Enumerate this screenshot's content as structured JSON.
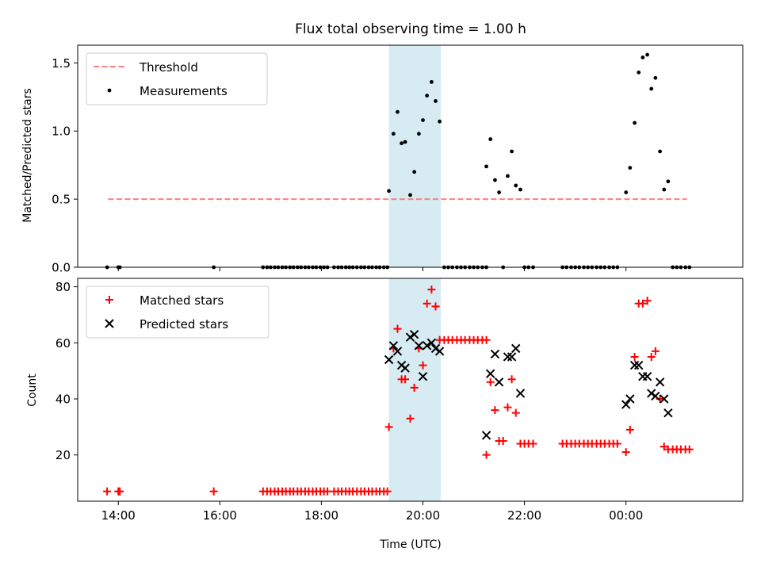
{
  "chart_data": [
    {
      "type": "scatter",
      "title": "Flux total observing time = 1.00 h",
      "xlabel": "",
      "ylabel": "Matched/Predicted stars",
      "xlim": [
        13.2,
        26.3
      ],
      "ylim": [
        0,
        1.63
      ],
      "yticks": [
        0.0,
        0.5,
        1.0,
        1.5
      ],
      "ytick_labels": [
        "0.0",
        "0.5",
        "1.0",
        "1.5"
      ],
      "xticks": [
        14,
        16,
        18,
        20,
        22,
        24
      ],
      "highlight_span": [
        19.33,
        20.35
      ],
      "threshold": {
        "label": "Threshold",
        "value": 0.5,
        "x_range": [
          13.8,
          25.2
        ],
        "color": "#ff7f7f"
      },
      "legend": [
        "Threshold",
        "Measurements"
      ],
      "legend_position": "upper-left",
      "series": [
        {
          "name": "Measurements",
          "color": "#000000",
          "points": [
            [
              13.78,
              0
            ],
            [
              14.0,
              0
            ],
            [
              14.03,
              0
            ],
            [
              15.88,
              0
            ],
            [
              16.85,
              0
            ],
            [
              16.93,
              0
            ],
            [
              17.0,
              0
            ],
            [
              17.08,
              0
            ],
            [
              17.15,
              0
            ],
            [
              17.23,
              0
            ],
            [
              17.3,
              0
            ],
            [
              17.38,
              0
            ],
            [
              17.45,
              0
            ],
            [
              17.53,
              0
            ],
            [
              17.6,
              0
            ],
            [
              17.68,
              0
            ],
            [
              17.75,
              0
            ],
            [
              17.83,
              0
            ],
            [
              17.9,
              0
            ],
            [
              17.98,
              0
            ],
            [
              18.05,
              0
            ],
            [
              18.12,
              0
            ],
            [
              18.25,
              0
            ],
            [
              18.33,
              0
            ],
            [
              18.4,
              0
            ],
            [
              18.48,
              0
            ],
            [
              18.55,
              0
            ],
            [
              18.62,
              0
            ],
            [
              18.7,
              0
            ],
            [
              18.78,
              0
            ],
            [
              18.85,
              0
            ],
            [
              18.93,
              0
            ],
            [
              19.0,
              0
            ],
            [
              19.08,
              0
            ],
            [
              19.15,
              0
            ],
            [
              19.23,
              0
            ],
            [
              19.3,
              0
            ],
            [
              19.33,
              0.56
            ],
            [
              19.42,
              0.98
            ],
            [
              19.5,
              1.14
            ],
            [
              19.58,
              0.91
            ],
            [
              19.65,
              0.92
            ],
            [
              19.75,
              0.53
            ],
            [
              19.83,
              0.7
            ],
            [
              19.92,
              0.98
            ],
            [
              20.0,
              1.08
            ],
            [
              20.08,
              1.26
            ],
            [
              20.17,
              1.36
            ],
            [
              20.25,
              1.22
            ],
            [
              20.33,
              1.07
            ],
            [
              20.42,
              0
            ],
            [
              20.5,
              0
            ],
            [
              20.58,
              0
            ],
            [
              20.67,
              0
            ],
            [
              20.75,
              0
            ],
            [
              20.83,
              0
            ],
            [
              20.92,
              0
            ],
            [
              21.0,
              0
            ],
            [
              21.08,
              0
            ],
            [
              21.17,
              0
            ],
            [
              21.25,
              0
            ],
            [
              21.25,
              0.74
            ],
            [
              21.33,
              0.94
            ],
            [
              21.42,
              0.64
            ],
            [
              21.5,
              0.55
            ],
            [
              21.58,
              0
            ],
            [
              21.67,
              0.67
            ],
            [
              21.75,
              0.85
            ],
            [
              21.83,
              0.6
            ],
            [
              21.92,
              0.57
            ],
            [
              22.0,
              0
            ],
            [
              22.08,
              0
            ],
            [
              22.17,
              0
            ],
            [
              22.75,
              0
            ],
            [
              22.83,
              0
            ],
            [
              22.92,
              0
            ],
            [
              23.0,
              0
            ],
            [
              23.08,
              0
            ],
            [
              23.17,
              0
            ],
            [
              23.25,
              0
            ],
            [
              23.33,
              0
            ],
            [
              23.42,
              0
            ],
            [
              23.5,
              0
            ],
            [
              23.58,
              0
            ],
            [
              23.67,
              0
            ],
            [
              23.75,
              0
            ],
            [
              23.83,
              0
            ],
            [
              24.0,
              0.55
            ],
            [
              24.08,
              0.73
            ],
            [
              24.17,
              1.06
            ],
            [
              24.25,
              1.43
            ],
            [
              24.33,
              1.54
            ],
            [
              24.42,
              1.56
            ],
            [
              24.5,
              1.31
            ],
            [
              24.58,
              1.39
            ],
            [
              24.67,
              0.85
            ],
            [
              24.75,
              0.57
            ],
            [
              24.83,
              0.63
            ],
            [
              24.92,
              0
            ],
            [
              25.0,
              0
            ],
            [
              25.08,
              0
            ],
            [
              25.17,
              0
            ],
            [
              25.25,
              0
            ]
          ]
        }
      ]
    },
    {
      "type": "scatter",
      "title": "",
      "xlabel": "Time (UTC)",
      "ylabel": "Count",
      "xlim": [
        13.2,
        26.3
      ],
      "ylim": [
        3.5,
        83
      ],
      "yticks": [
        20,
        40,
        60,
        80
      ],
      "ytick_labels": [
        "20",
        "40",
        "60",
        "80"
      ],
      "xticks": [
        14,
        16,
        18,
        20,
        22,
        24
      ],
      "xtick_labels": [
        "14:00",
        "16:00",
        "18:00",
        "20:00",
        "22:00",
        "00:00"
      ],
      "highlight_span": [
        19.33,
        20.35
      ],
      "legend": [
        "Matched stars",
        "Predicted stars"
      ],
      "legend_position": "upper-left",
      "series": [
        {
          "name": "Matched stars",
          "marker": "plus",
          "color": "#ff0000",
          "points": [
            [
              13.78,
              7
            ],
            [
              14.0,
              7
            ],
            [
              14.03,
              7
            ],
            [
              15.88,
              7
            ],
            [
              16.85,
              7
            ],
            [
              16.93,
              7
            ],
            [
              17.0,
              7
            ],
            [
              17.08,
              7
            ],
            [
              17.15,
              7
            ],
            [
              17.23,
              7
            ],
            [
              17.3,
              7
            ],
            [
              17.38,
              7
            ],
            [
              17.45,
              7
            ],
            [
              17.53,
              7
            ],
            [
              17.6,
              7
            ],
            [
              17.68,
              7
            ],
            [
              17.75,
              7
            ],
            [
              17.83,
              7
            ],
            [
              17.9,
              7
            ],
            [
              17.98,
              7
            ],
            [
              18.05,
              7
            ],
            [
              18.12,
              7
            ],
            [
              18.25,
              7
            ],
            [
              18.33,
              7
            ],
            [
              18.4,
              7
            ],
            [
              18.48,
              7
            ],
            [
              18.55,
              7
            ],
            [
              18.62,
              7
            ],
            [
              18.7,
              7
            ],
            [
              18.78,
              7
            ],
            [
              18.85,
              7
            ],
            [
              18.93,
              7
            ],
            [
              19.0,
              7
            ],
            [
              19.08,
              7
            ],
            [
              19.15,
              7
            ],
            [
              19.23,
              7
            ],
            [
              19.3,
              7
            ],
            [
              19.33,
              30
            ],
            [
              19.42,
              58
            ],
            [
              19.5,
              65
            ],
            [
              19.58,
              47
            ],
            [
              19.65,
              47
            ],
            [
              19.75,
              33
            ],
            [
              19.83,
              44
            ],
            [
              19.92,
              58
            ],
            [
              20.0,
              52
            ],
            [
              20.08,
              74
            ],
            [
              20.17,
              79
            ],
            [
              20.25,
              73
            ],
            [
              20.33,
              61
            ],
            [
              20.42,
              61
            ],
            [
              20.5,
              61
            ],
            [
              20.58,
              61
            ],
            [
              20.67,
              61
            ],
            [
              20.75,
              61
            ],
            [
              20.83,
              61
            ],
            [
              20.92,
              61
            ],
            [
              21.0,
              61
            ],
            [
              21.08,
              61
            ],
            [
              21.17,
              61
            ],
            [
              21.25,
              61
            ],
            [
              21.25,
              20
            ],
            [
              21.33,
              46
            ],
            [
              21.42,
              36
            ],
            [
              21.5,
              25
            ],
            [
              21.58,
              25
            ],
            [
              21.67,
              37
            ],
            [
              21.75,
              47
            ],
            [
              21.83,
              35
            ],
            [
              21.92,
              24
            ],
            [
              22.0,
              24
            ],
            [
              22.08,
              24
            ],
            [
              22.17,
              24
            ],
            [
              22.75,
              24
            ],
            [
              22.83,
              24
            ],
            [
              22.92,
              24
            ],
            [
              23.0,
              24
            ],
            [
              23.08,
              24
            ],
            [
              23.17,
              24
            ],
            [
              23.25,
              24
            ],
            [
              23.33,
              24
            ],
            [
              23.42,
              24
            ],
            [
              23.5,
              24
            ],
            [
              23.58,
              24
            ],
            [
              23.67,
              24
            ],
            [
              23.75,
              24
            ],
            [
              23.83,
              24
            ],
            [
              24.0,
              21
            ],
            [
              24.08,
              29
            ],
            [
              24.17,
              55
            ],
            [
              24.25,
              74
            ],
            [
              24.33,
              74
            ],
            [
              24.42,
              75
            ],
            [
              24.5,
              55
            ],
            [
              24.58,
              57
            ],
            [
              24.67,
              40
            ],
            [
              24.75,
              23
            ],
            [
              24.83,
              22
            ],
            [
              24.92,
              22
            ],
            [
              25.0,
              22
            ],
            [
              25.08,
              22
            ],
            [
              25.17,
              22
            ],
            [
              25.25,
              22
            ]
          ]
        },
        {
          "name": "Predicted stars",
          "marker": "x",
          "color": "#000000",
          "points": [
            [
              19.33,
              54
            ],
            [
              19.42,
              59
            ],
            [
              19.5,
              57
            ],
            [
              19.58,
              52
            ],
            [
              19.65,
              51
            ],
            [
              19.75,
              62
            ],
            [
              19.83,
              63
            ],
            [
              19.92,
              59
            ],
            [
              20.0,
              48
            ],
            [
              20.08,
              59
            ],
            [
              20.17,
              60
            ],
            [
              20.25,
              58
            ],
            [
              20.33,
              57
            ],
            [
              21.25,
              27
            ],
            [
              21.33,
              49
            ],
            [
              21.42,
              56
            ],
            [
              21.5,
              46
            ],
            [
              21.67,
              55
            ],
            [
              21.75,
              55
            ],
            [
              21.83,
              58
            ],
            [
              21.92,
              42
            ],
            [
              24.0,
              38
            ],
            [
              24.08,
              40
            ],
            [
              24.17,
              52
            ],
            [
              24.25,
              52
            ],
            [
              24.33,
              48
            ],
            [
              24.42,
              48
            ],
            [
              24.5,
              42
            ],
            [
              24.58,
              41
            ],
            [
              24.67,
              46
            ],
            [
              24.75,
              40
            ],
            [
              24.83,
              35
            ]
          ]
        }
      ]
    }
  ]
}
